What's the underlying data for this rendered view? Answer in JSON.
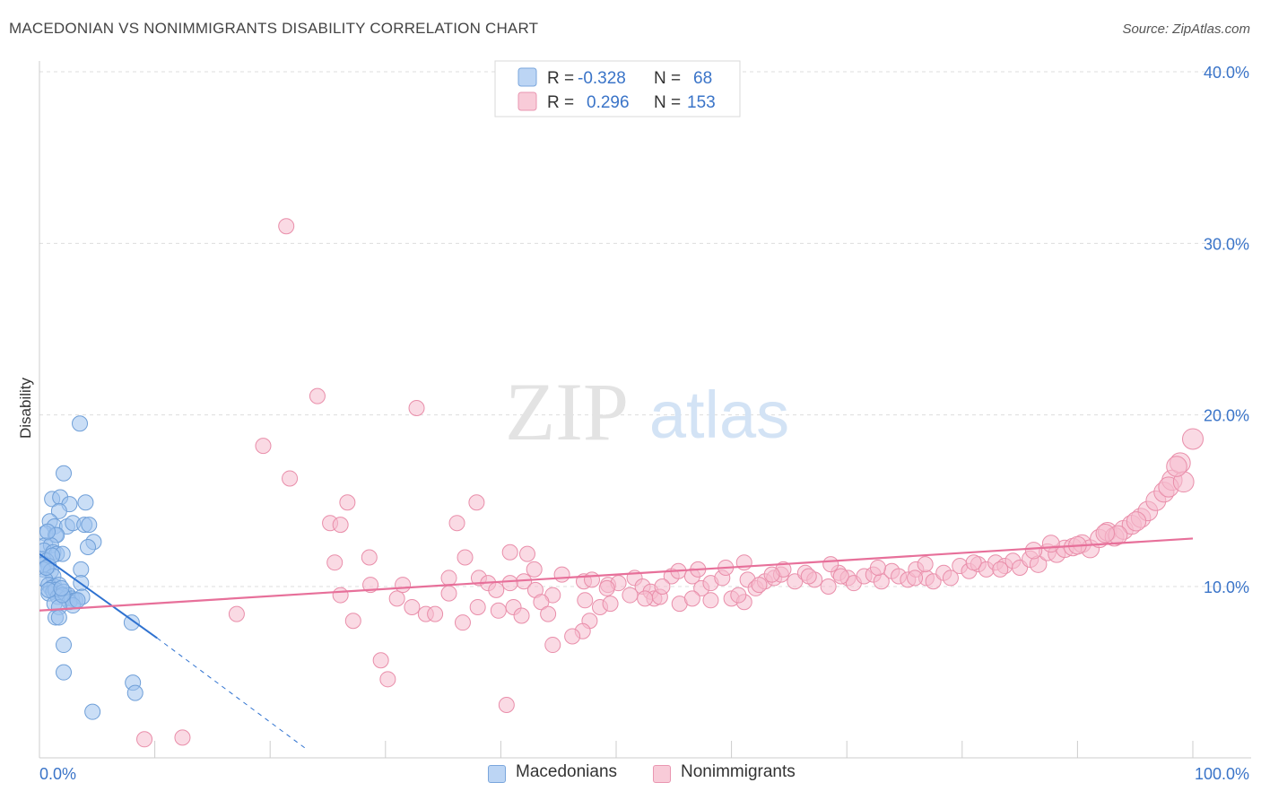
{
  "header": {
    "title": "MACEDONIAN VS NONIMMIGRANTS DISABILITY CORRELATION CHART",
    "source": "Source: ZipAtlas.com"
  },
  "watermark": {
    "zip": "ZIP",
    "atlas": "atlas"
  },
  "colors": {
    "blue_fill": "#9ec3ee",
    "blue_stroke": "#6f9fd8",
    "blue_line": "#2f72d0",
    "pink_fill": "#f6bccd",
    "pink_stroke": "#e98eaa",
    "pink_line": "#e7709a",
    "value_text": "#3a74c8",
    "axis_text": "#3a74c8"
  },
  "stats_legend": [
    {
      "r_label": "R =",
      "r_value": "-0.328",
      "n_label": "N =",
      "n_value": "68"
    },
    {
      "r_label": "R =",
      "r_value": "0.296",
      "n_label": "N =",
      "n_value": "153"
    }
  ],
  "chart_data": {
    "type": "scatter",
    "title": "MACEDONIAN VS NONIMMIGRANTS DISABILITY CORRELATION CHART",
    "xlabel": "",
    "ylabel": "Disability",
    "xlim": [
      0,
      100
    ],
    "ylim": [
      0,
      41
    ],
    "x_tick_labels": [
      "0.0%",
      "100.0%"
    ],
    "y_ticks": [
      10,
      20,
      30,
      40
    ],
    "y_tick_labels": [
      "10.0%",
      "20.0%",
      "30.0%",
      "40.0%"
    ],
    "grid": true,
    "legend_position": "bottom",
    "series": [
      {
        "name": "Macedonians",
        "r": -0.328,
        "n": 68,
        "trend": {
          "x0": 0,
          "y0": 11.9,
          "x1": 10.2,
          "y1": 7.0,
          "dashed_to_x": 23.0,
          "dashed_to_y": 0.6
        },
        "points": [
          [
            3.5,
            19.5
          ],
          [
            2.1,
            16.6
          ],
          [
            1.1,
            15.1
          ],
          [
            1.8,
            15.2
          ],
          [
            4.0,
            14.9
          ],
          [
            2.6,
            14.8
          ],
          [
            1.7,
            14.4
          ],
          [
            0.9,
            13.8
          ],
          [
            1.3,
            13.5
          ],
          [
            2.4,
            13.5
          ],
          [
            2.9,
            13.7
          ],
          [
            3.9,
            13.6
          ],
          [
            4.3,
            13.6
          ],
          [
            0.5,
            13.1
          ],
          [
            1.4,
            13.0
          ],
          [
            1.5,
            13.0
          ],
          [
            4.7,
            12.6
          ],
          [
            0.5,
            12.4
          ],
          [
            1.0,
            12.4
          ],
          [
            4.2,
            12.3
          ],
          [
            0.4,
            12.1
          ],
          [
            1.2,
            12.0
          ],
          [
            1.5,
            11.9
          ],
          [
            2.0,
            11.9
          ],
          [
            0.3,
            11.6
          ],
          [
            0.6,
            11.5
          ],
          [
            0.4,
            11.3
          ],
          [
            0.8,
            11.2
          ],
          [
            0.3,
            11.0
          ],
          [
            1.0,
            10.9
          ],
          [
            1.2,
            10.6
          ],
          [
            3.6,
            11.0
          ],
          [
            0.5,
            10.4
          ],
          [
            0.8,
            10.1
          ],
          [
            1.3,
            10.0
          ],
          [
            1.0,
            9.9
          ],
          [
            1.7,
            10.1
          ],
          [
            3.6,
            10.2
          ],
          [
            0.8,
            9.6
          ],
          [
            1.2,
            9.7
          ],
          [
            1.4,
            9.8
          ],
          [
            1.8,
            9.6
          ],
          [
            2.1,
            9.7
          ],
          [
            2.5,
            9.5
          ],
          [
            1.6,
            9.4
          ],
          [
            2.3,
            9.3
          ],
          [
            2.8,
            9.3
          ],
          [
            3.1,
            9.2
          ],
          [
            3.7,
            9.4
          ],
          [
            1.3,
            9.0
          ],
          [
            2.6,
            9.1
          ],
          [
            2.9,
            8.9
          ],
          [
            1.7,
            8.8
          ],
          [
            1.4,
            8.2
          ],
          [
            1.7,
            8.2
          ],
          [
            8.0,
            7.9
          ],
          [
            2.1,
            6.6
          ],
          [
            2.1,
            5.0
          ],
          [
            8.1,
            4.4
          ],
          [
            8.3,
            3.8
          ],
          [
            4.6,
            2.7
          ],
          [
            0.8,
            9.8
          ],
          [
            2.0,
            9.5
          ],
          [
            3.3,
            9.2
          ],
          [
            1.1,
            11.8
          ],
          [
            0.6,
            11.1
          ],
          [
            1.9,
            9.9
          ],
          [
            0.7,
            13.2
          ]
        ]
      },
      {
        "name": "Nonimmigrants",
        "r": 0.296,
        "n": 153,
        "trend": {
          "x0": 0,
          "y0": 8.6,
          "x1": 100,
          "y1": 12.8
        },
        "points": [
          [
            21.4,
            31.0
          ],
          [
            24.1,
            21.1
          ],
          [
            32.7,
            20.4
          ],
          [
            19.4,
            18.2
          ],
          [
            21.7,
            16.3
          ],
          [
            26.7,
            14.9
          ],
          [
            37.9,
            14.9
          ],
          [
            25.2,
            13.7
          ],
          [
            26.1,
            13.6
          ],
          [
            36.2,
            13.7
          ],
          [
            40.8,
            12.0
          ],
          [
            42.3,
            11.9
          ],
          [
            28.6,
            11.7
          ],
          [
            25.6,
            11.4
          ],
          [
            36.9,
            11.7
          ],
          [
            38.1,
            10.5
          ],
          [
            42.0,
            10.3
          ],
          [
            43.0,
            9.8
          ],
          [
            47.2,
            10.3
          ],
          [
            47.9,
            10.4
          ],
          [
            49.3,
            10.1
          ],
          [
            50.2,
            10.2
          ],
          [
            51.6,
            10.5
          ],
          [
            52.3,
            10.0
          ],
          [
            53.0,
            9.7
          ],
          [
            53.3,
            9.3
          ],
          [
            54.8,
            10.6
          ],
          [
            55.4,
            10.9
          ],
          [
            56.6,
            10.6
          ],
          [
            57.4,
            9.9
          ],
          [
            58.2,
            10.2
          ],
          [
            59.2,
            10.5
          ],
          [
            60.0,
            9.3
          ],
          [
            61.1,
            9.1
          ],
          [
            61.4,
            10.4
          ],
          [
            62.1,
            9.9
          ],
          [
            62.9,
            10.3
          ],
          [
            63.7,
            10.5
          ],
          [
            64.3,
            10.7
          ],
          [
            65.5,
            10.3
          ],
          [
            66.4,
            10.8
          ],
          [
            67.2,
            10.4
          ],
          [
            68.4,
            10.0
          ],
          [
            69.3,
            10.8
          ],
          [
            70.1,
            10.5
          ],
          [
            70.6,
            10.2
          ],
          [
            71.5,
            10.6
          ],
          [
            72.3,
            10.7
          ],
          [
            73.0,
            10.3
          ],
          [
            73.9,
            10.9
          ],
          [
            74.5,
            10.6
          ],
          [
            75.3,
            10.4
          ],
          [
            76.0,
            11.0
          ],
          [
            76.9,
            10.5
          ],
          [
            77.5,
            10.3
          ],
          [
            78.4,
            10.8
          ],
          [
            79.0,
            10.5
          ],
          [
            79.8,
            11.2
          ],
          [
            80.6,
            10.9
          ],
          [
            81.4,
            11.3
          ],
          [
            82.1,
            11.0
          ],
          [
            82.9,
            11.4
          ],
          [
            83.7,
            11.2
          ],
          [
            84.4,
            11.5
          ],
          [
            85.0,
            11.1
          ],
          [
            85.9,
            11.6
          ],
          [
            86.6,
            11.3
          ],
          [
            87.4,
            12.0
          ],
          [
            88.2,
            11.9
          ],
          [
            88.9,
            12.2
          ],
          [
            89.6,
            12.3
          ],
          [
            90.4,
            12.5
          ],
          [
            91.1,
            12.2
          ],
          [
            91.9,
            12.8
          ],
          [
            92.6,
            13.2
          ],
          [
            93.2,
            12.9
          ],
          [
            94.0,
            13.3
          ],
          [
            94.7,
            13.6
          ],
          [
            95.5,
            14.0
          ],
          [
            96.1,
            14.4
          ],
          [
            96.8,
            15.0
          ],
          [
            97.5,
            15.5
          ],
          [
            98.2,
            16.2
          ],
          [
            98.9,
            17.2
          ],
          [
            100.0,
            18.6
          ],
          [
            68.6,
            11.3
          ],
          [
            64.5,
            11.0
          ],
          [
            72.7,
            11.1
          ],
          [
            57.1,
            11.0
          ],
          [
            61.1,
            11.4
          ],
          [
            45.3,
            10.7
          ],
          [
            42.9,
            11.0
          ],
          [
            38.9,
            10.2
          ],
          [
            33.5,
            8.4
          ],
          [
            31.0,
            9.3
          ],
          [
            34.3,
            8.4
          ],
          [
            31.5,
            10.1
          ],
          [
            28.7,
            10.1
          ],
          [
            26.1,
            9.5
          ],
          [
            27.2,
            8.0
          ],
          [
            35.5,
            10.5
          ],
          [
            39.6,
            9.8
          ],
          [
            40.8,
            10.2
          ],
          [
            44.5,
            9.5
          ],
          [
            47.3,
            9.2
          ],
          [
            48.6,
            8.8
          ],
          [
            49.5,
            9.0
          ],
          [
            51.2,
            9.5
          ],
          [
            55.5,
            9.0
          ],
          [
            58.2,
            9.2
          ],
          [
            60.6,
            9.5
          ],
          [
            62.4,
            10.1
          ],
          [
            35.5,
            9.6
          ],
          [
            36.7,
            7.9
          ],
          [
            38.0,
            8.8
          ],
          [
            39.8,
            8.6
          ],
          [
            41.1,
            8.8
          ],
          [
            41.8,
            8.3
          ],
          [
            43.5,
            9.1
          ],
          [
            44.1,
            8.4
          ],
          [
            47.7,
            8.0
          ],
          [
            47.1,
            7.4
          ],
          [
            46.2,
            7.1
          ],
          [
            44.5,
            6.6
          ],
          [
            29.6,
            5.7
          ],
          [
            30.2,
            4.6
          ],
          [
            32.3,
            8.8
          ],
          [
            17.1,
            8.4
          ],
          [
            40.5,
            3.1
          ],
          [
            9.1,
            1.1
          ],
          [
            12.4,
            1.2
          ],
          [
            49.2,
            9.9
          ],
          [
            52.5,
            9.3
          ],
          [
            53.8,
            9.4
          ],
          [
            56.6,
            9.3
          ],
          [
            63.5,
            10.7
          ],
          [
            66.7,
            10.6
          ],
          [
            69.5,
            10.6
          ],
          [
            75.9,
            10.5
          ],
          [
            81.0,
            11.4
          ],
          [
            86.2,
            12.1
          ],
          [
            90.0,
            12.4
          ],
          [
            93.5,
            13.0
          ],
          [
            95.1,
            13.8
          ],
          [
            97.9,
            15.8
          ],
          [
            99.2,
            16.1
          ],
          [
            76.8,
            11.3
          ],
          [
            83.3,
            11.0
          ],
          [
            59.5,
            11.1
          ],
          [
            54.0,
            10.0
          ],
          [
            87.7,
            12.5
          ],
          [
            92.4,
            13.1
          ],
          [
            98.6,
            17.0
          ]
        ]
      }
    ]
  }
}
